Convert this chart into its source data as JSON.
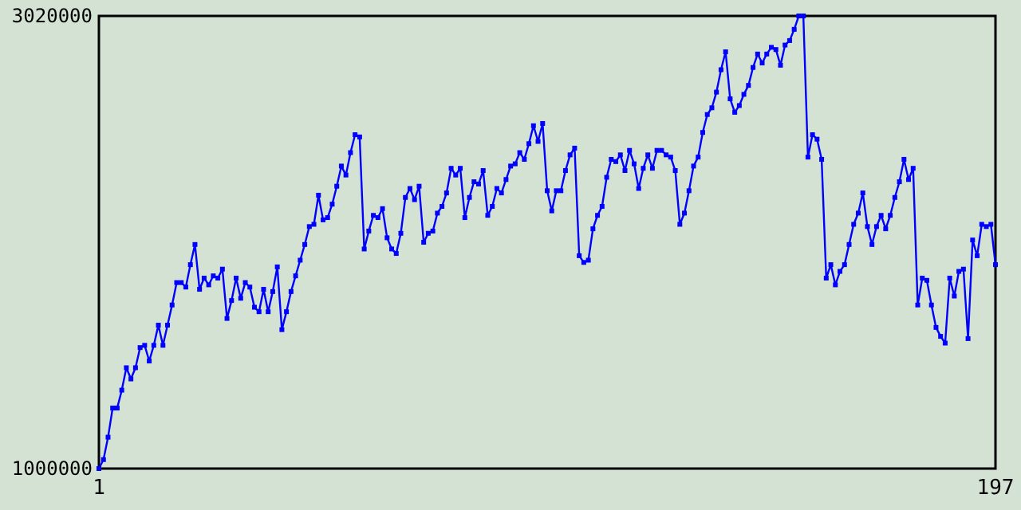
{
  "chart_data": {
    "type": "line",
    "x": [
      1,
      2,
      3,
      4,
      5,
      6,
      7,
      8,
      9,
      10,
      11,
      12,
      13,
      14,
      15,
      16,
      17,
      18,
      19,
      20,
      21,
      22,
      23,
      24,
      25,
      26,
      27,
      28,
      29,
      30,
      31,
      32,
      33,
      34,
      35,
      36,
      37,
      38,
      39,
      40,
      41,
      42,
      43,
      44,
      45,
      46,
      47,
      48,
      49,
      50,
      51,
      52,
      53,
      54,
      55,
      56,
      57,
      58,
      59,
      60,
      61,
      62,
      63,
      64,
      65,
      66,
      67,
      68,
      69,
      70,
      71,
      72,
      73,
      74,
      75,
      76,
      77,
      78,
      79,
      80,
      81,
      82,
      83,
      84,
      85,
      86,
      87,
      88,
      89,
      90,
      91,
      92,
      93,
      94,
      95,
      96,
      97,
      98,
      99,
      100,
      101,
      102,
      103,
      104,
      105,
      106,
      107,
      108,
      109,
      110,
      111,
      112,
      113,
      114,
      115,
      116,
      117,
      118,
      119,
      120,
      121,
      122,
      123,
      124,
      125,
      126,
      127,
      128,
      129,
      130,
      131,
      132,
      133,
      134,
      135,
      136,
      137,
      138,
      139,
      140,
      141,
      142,
      143,
      144,
      145,
      146,
      147,
      148,
      149,
      150,
      151,
      152,
      153,
      154,
      155,
      156,
      157,
      158,
      159,
      160,
      161,
      162,
      163,
      164,
      165,
      166,
      167,
      168,
      169,
      170,
      171,
      172,
      173,
      174,
      175,
      176,
      177,
      178,
      179,
      180,
      181,
      182,
      183,
      184,
      185,
      186,
      187,
      188,
      189,
      190,
      191,
      192,
      193,
      194,
      195,
      196,
      197
    ],
    "series": [
      {
        "color": "#0000ff",
        "values": [
          1000000,
          1040000,
          1140000,
          1270000,
          1270000,
          1350000,
          1450000,
          1400000,
          1450000,
          1540000,
          1550000,
          1480000,
          1550000,
          1640000,
          1550000,
          1640000,
          1730000,
          1830000,
          1830000,
          1810000,
          1910000,
          2000000,
          1800000,
          1850000,
          1820000,
          1860000,
          1850000,
          1890000,
          1670000,
          1750000,
          1850000,
          1760000,
          1830000,
          1810000,
          1720000,
          1700000,
          1800000,
          1700000,
          1790000,
          1900000,
          1620000,
          1700000,
          1790000,
          1860000,
          1930000,
          2000000,
          2080000,
          2090000,
          2220000,
          2110000,
          2120000,
          2180000,
          2260000,
          2350000,
          2310000,
          2410000,
          2490000,
          2480000,
          1980000,
          2060000,
          2130000,
          2120000,
          2160000,
          2030000,
          1980000,
          1960000,
          2050000,
          2210000,
          2250000,
          2200000,
          2260000,
          2010000,
          2050000,
          2060000,
          2140000,
          2170000,
          2230000,
          2340000,
          2310000,
          2340000,
          2120000,
          2210000,
          2280000,
          2270000,
          2330000,
          2130000,
          2170000,
          2250000,
          2230000,
          2290000,
          2350000,
          2360000,
          2410000,
          2380000,
          2450000,
          2530000,
          2460000,
          2540000,
          2240000,
          2150000,
          2240000,
          2240000,
          2330000,
          2400000,
          2430000,
          1950000,
          1920000,
          1930000,
          2070000,
          2130000,
          2170000,
          2300000,
          2380000,
          2370000,
          2400000,
          2330000,
          2420000,
          2360000,
          2250000,
          2340000,
          2400000,
          2340000,
          2420000,
          2420000,
          2400000,
          2390000,
          2330000,
          2090000,
          2140000,
          2240000,
          2350000,
          2390000,
          2500000,
          2580000,
          2610000,
          2680000,
          2780000,
          2860000,
          2650000,
          2590000,
          2620000,
          2670000,
          2710000,
          2790000,
          2850000,
          2810000,
          2850000,
          2880000,
          2870000,
          2800000,
          2890000,
          2910000,
          2960000,
          3020000,
          3020000,
          2390000,
          2490000,
          2470000,
          2380000,
          1850000,
          1910000,
          1820000,
          1880000,
          1910000,
          2000000,
          2090000,
          2140000,
          2230000,
          2080000,
          2000000,
          2080000,
          2130000,
          2070000,
          2130000,
          2210000,
          2280000,
          2380000,
          2290000,
          2340000,
          1730000,
          1850000,
          1840000,
          1730000,
          1630000,
          1590000,
          1560000,
          1850000,
          1770000,
          1880000,
          1890000,
          1580000,
          2020000,
          1950000,
          2090000,
          2080000,
          2090000,
          1910000
        ]
      }
    ],
    "xlim": [
      1,
      197
    ],
    "xticks": [
      1,
      197
    ],
    "ylim": [
      1000000,
      3020000
    ],
    "yticks": [
      1000000,
      3020000
    ],
    "marker": "square",
    "line_style": "solid"
  }
}
